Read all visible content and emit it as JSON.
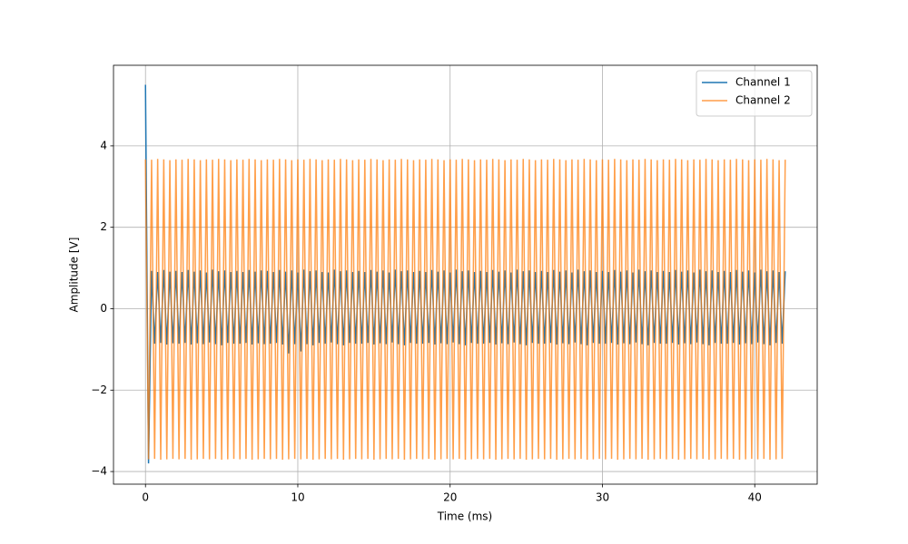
{
  "chart_data": {
    "type": "line",
    "xlabel": "Time (ms)",
    "ylabel": "Amplitude [V]",
    "xlim": [
      -2.1,
      44.1
    ],
    "ylim": [
      -4.31,
      5.98
    ],
    "xticks": [
      0,
      10,
      20,
      30,
      40
    ],
    "yticks": [
      {
        "value": -4,
        "label": "−4"
      },
      {
        "value": -2,
        "label": "−2"
      },
      0,
      2,
      4
    ],
    "grid": true,
    "legend": "upper right",
    "x": [
      0,
      0.2,
      0.4,
      0.6,
      0.8,
      1,
      1.2,
      1.4,
      1.6,
      1.8,
      2,
      2.2,
      2.4,
      2.6,
      2.8,
      3,
      3.2,
      3.4,
      3.6,
      3.8,
      4,
      4.2,
      4.4,
      4.6,
      4.8,
      5,
      5.2,
      5.4,
      5.6,
      5.8,
      6,
      6.2,
      6.4,
      6.6,
      6.8,
      7,
      7.2,
      7.4,
      7.6,
      7.8,
      8,
      8.2,
      8.4,
      8.6,
      8.8,
      9,
      9.2,
      9.4,
      9.6,
      9.8,
      10,
      10.2,
      10.4,
      10.6,
      10.8,
      11,
      11.2,
      11.4,
      11.6,
      11.8,
      12,
      12.2,
      12.4,
      12.6,
      12.8,
      13,
      13.2,
      13.4,
      13.6,
      13.8,
      14,
      14.2,
      14.4,
      14.6,
      14.8,
      15,
      15.2,
      15.4,
      15.6,
      15.8,
      16,
      16.2,
      16.4,
      16.6,
      16.8,
      17,
      17.2,
      17.4,
      17.6,
      17.8,
      18,
      18.2,
      18.4,
      18.6,
      18.8,
      19,
      19.2,
      19.4,
      19.6,
      19.8,
      20,
      20.2,
      20.4,
      20.6,
      20.8,
      21,
      21.2,
      21.4,
      21.6,
      21.8,
      22,
      22.2,
      22.4,
      22.6,
      22.8,
      23,
      23.2,
      23.4,
      23.6,
      23.8,
      24,
      24.2,
      24.4,
      24.6,
      24.8,
      25,
      25.2,
      25.4,
      25.6,
      25.8,
      26,
      26.2,
      26.4,
      26.6,
      26.8,
      27,
      27.2,
      27.4,
      27.6,
      27.8,
      28,
      28.2,
      28.4,
      28.6,
      28.8,
      29,
      29.2,
      29.4,
      29.6,
      29.8,
      30,
      30.2,
      30.4,
      30.6,
      30.8,
      31,
      31.2,
      31.4,
      31.6,
      31.8,
      32,
      32.2,
      32.4,
      32.6,
      32.8,
      33,
      33.2,
      33.4,
      33.6,
      33.8,
      34,
      34.2,
      34.4,
      34.6,
      34.8,
      35,
      35.2,
      35.4,
      35.6,
      35.8,
      36,
      36.2,
      36.4,
      36.6,
      36.8,
      37,
      37.2,
      37.4,
      37.6,
      37.8,
      38,
      38.2,
      38.4,
      38.6,
      38.8,
      39,
      39.2,
      39.4,
      39.6,
      39.8,
      40,
      40.2,
      40.4,
      40.6,
      40.8,
      41,
      41.2,
      41.4,
      41.6,
      41.8,
      42
    ],
    "series": [
      {
        "name": "Channel 1",
        "color": "#1f77b4",
        "values": [
          5.5,
          -3.8,
          0.93,
          -0.86,
          0.9,
          -0.84,
          0.95,
          -0.88,
          0.91,
          -0.85,
          0.93,
          -0.86,
          0.9,
          -0.84,
          0.95,
          -0.88,
          0.91,
          -0.85,
          0.94,
          -0.87,
          0.89,
          -0.83,
          0.96,
          -0.87,
          0.92,
          -0.9,
          0.94,
          -0.84,
          0.9,
          -0.86,
          0.93,
          -0.86,
          0.9,
          -0.84,
          0.95,
          -0.88,
          0.91,
          -0.85,
          0.94,
          -0.87,
          0.93,
          -0.86,
          0.9,
          -0.84,
          0.95,
          -0.88,
          0.91,
          -1.1,
          0.94,
          -0.87,
          0.89,
          -1.05,
          0.96,
          -0.87,
          0.92,
          -0.9,
          0.94,
          -0.84,
          0.9,
          -0.86,
          0.89,
          -0.83,
          0.96,
          -0.87,
          0.92,
          -0.9,
          0.94,
          -0.84,
          0.9,
          -0.86,
          0.93,
          -0.86,
          0.9,
          -0.84,
          0.95,
          -0.88,
          0.91,
          -0.85,
          0.94,
          -0.87,
          0.89,
          -0.83,
          0.96,
          -0.87,
          0.92,
          -0.9,
          0.94,
          -0.84,
          0.9,
          -0.86,
          0.93,
          -0.86,
          0.9,
          -0.84,
          0.95,
          -0.88,
          0.91,
          -0.85,
          0.94,
          -0.87,
          0.89,
          -0.83,
          0.96,
          -0.87,
          0.92,
          -0.9,
          0.94,
          -0.84,
          0.9,
          -0.86,
          0.93,
          -0.86,
          0.9,
          -0.84,
          0.95,
          -0.88,
          0.91,
          -0.85,
          0.94,
          -0.87,
          0.89,
          -0.83,
          0.96,
          -0.87,
          0.92,
          -0.9,
          0.94,
          -0.84,
          0.9,
          -0.86,
          0.93,
          -0.86,
          0.9,
          -0.84,
          0.95,
          -0.88,
          0.91,
          -0.85,
          0.94,
          -0.87,
          0.89,
          -0.83,
          0.96,
          -0.87,
          0.92,
          -0.9,
          0.94,
          -0.84,
          0.9,
          -0.86,
          0.93,
          -0.86,
          0.9,
          -0.84,
          0.95,
          -0.88,
          0.91,
          -0.85,
          0.94,
          -0.87,
          0.89,
          -0.83,
          0.96,
          -0.87,
          0.92,
          -0.9,
          0.94,
          -0.84,
          0.9,
          -0.86,
          0.93,
          -0.86,
          0.9,
          -0.84,
          0.95,
          -0.88,
          0.91,
          -0.85,
          0.94,
          -0.87,
          0.89,
          -0.83,
          0.96,
          -0.87,
          0.92,
          -0.9,
          0.94,
          -0.84,
          0.9,
          -0.86,
          0.93,
          -0.86,
          0.9,
          -0.84,
          0.95,
          -0.88,
          0.91,
          -0.85,
          0.94,
          -0.87,
          0.89,
          -0.83,
          0.96,
          -0.87,
          0.92,
          -0.9,
          0.94,
          -0.84,
          0.9,
          -0.86,
          0.92
        ]
      },
      {
        "name": "Channel 2",
        "color": "#ff7f0e",
        "values": [
          3.67,
          -3.7,
          3.66,
          -3.69,
          3.68,
          -3.71,
          3.67,
          -3.7,
          3.65,
          -3.69,
          3.67,
          -3.7,
          3.66,
          -3.69,
          3.68,
          -3.71,
          3.67,
          -3.7,
          3.65,
          -3.69,
          3.67,
          -3.7,
          3.66,
          -3.69,
          3.68,
          -3.71,
          3.67,
          -3.7,
          3.65,
          -3.69,
          3.67,
          -3.7,
          3.66,
          -3.69,
          3.68,
          -3.71,
          3.67,
          -3.7,
          3.65,
          -3.69,
          3.67,
          -3.7,
          3.66,
          -3.69,
          3.68,
          -3.71,
          3.67,
          -3.7,
          3.65,
          -3.69,
          3.67,
          -3.7,
          3.66,
          -3.69,
          3.68,
          -3.71,
          3.67,
          -3.7,
          3.65,
          -3.69,
          3.67,
          -3.7,
          3.66,
          -3.69,
          3.68,
          -3.71,
          3.67,
          -3.7,
          3.65,
          -3.69,
          3.67,
          -3.7,
          3.66,
          -3.69,
          3.68,
          -3.71,
          3.67,
          -3.7,
          3.65,
          -3.69,
          3.67,
          -3.7,
          3.66,
          -3.69,
          3.68,
          -3.71,
          3.67,
          -3.7,
          3.65,
          -3.69,
          3.67,
          -3.7,
          3.66,
          -3.69,
          3.68,
          -3.71,
          3.67,
          -3.7,
          3.65,
          -3.69,
          3.67,
          -3.7,
          3.66,
          -3.69,
          3.68,
          -3.71,
          3.67,
          -3.7,
          3.65,
          -3.69,
          3.67,
          -3.7,
          3.66,
          -3.69,
          3.68,
          -3.71,
          3.67,
          -3.7,
          3.65,
          -3.69,
          3.67,
          -3.7,
          3.66,
          -3.69,
          3.68,
          -3.71,
          3.67,
          -3.7,
          3.65,
          -3.69,
          3.67,
          -3.7,
          3.66,
          -3.69,
          3.68,
          -3.71,
          3.67,
          -3.7,
          3.65,
          -3.69,
          3.67,
          -3.7,
          3.66,
          -3.69,
          3.68,
          -3.71,
          3.67,
          -3.7,
          3.65,
          -3.69,
          3.67,
          -3.7,
          3.66,
          -3.69,
          3.68,
          -3.71,
          3.67,
          -3.7,
          3.65,
          -3.69,
          3.67,
          -3.7,
          3.66,
          -3.69,
          3.68,
          -3.71,
          3.67,
          -3.7,
          3.65,
          -3.69,
          3.67,
          -3.7,
          3.66,
          -3.69,
          3.68,
          -3.71,
          3.67,
          -3.7,
          3.65,
          -3.69,
          3.67,
          -3.7,
          3.66,
          -3.69,
          3.68,
          -3.71,
          3.67,
          -3.7,
          3.65,
          -3.69,
          3.67,
          -3.7,
          3.66,
          -3.69,
          3.68,
          -3.71,
          3.67,
          -3.7,
          3.65,
          -3.69,
          3.67,
          -3.7,
          3.66,
          -3.69,
          3.68,
          -3.71,
          3.67,
          -3.7,
          3.65,
          -3.69,
          3.66
        ]
      }
    ]
  }
}
